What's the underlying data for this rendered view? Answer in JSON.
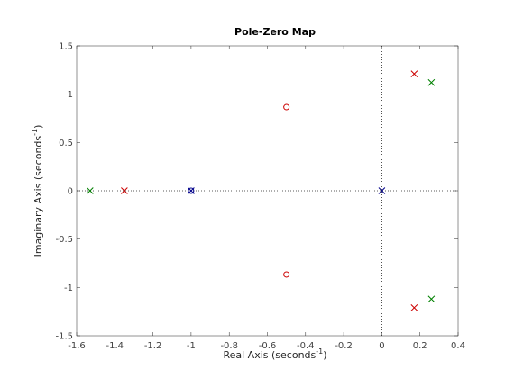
{
  "chart_data": {
    "type": "scatter",
    "title": "Pole-Zero Map",
    "xlabel": "Real Axis (seconds",
    "xlabel_sup": "-1",
    "xlabel_tail": ")",
    "ylabel": "Imaginary Axis (seconds",
    "ylabel_sup": "-1",
    "ylabel_tail": ")",
    "xlim": [
      -1.6,
      0.4
    ],
    "ylim": [
      -1.5,
      1.5
    ],
    "xticks": [
      -1.6,
      -1.4,
      -1.2,
      -1,
      -0.8,
      -0.6,
      -0.4,
      -0.2,
      0,
      0.2,
      0.4
    ],
    "xtick_labels": [
      "-1.6",
      "-1.4",
      "-1.2",
      "-1",
      "-0.8",
      "-0.6",
      "-0.4",
      "-0.2",
      "0",
      "0.2",
      "0.4"
    ],
    "yticks": [
      -1.5,
      -1,
      -0.5,
      0,
      0.5,
      1,
      1.5
    ],
    "ytick_labels": [
      "-1.5",
      "-1",
      "-0.5",
      "0",
      "0.5",
      "1",
      "1.5"
    ],
    "grid": false,
    "reference_lines": {
      "x": 0,
      "y": 0,
      "style": "dotted"
    },
    "series": [
      {
        "color": "#00008b",
        "poles": [
          {
            "x": -1.0,
            "y": 0
          },
          {
            "x": 0,
            "y": 0
          }
        ],
        "zeros": [
          {
            "x": -1.0,
            "y": 0
          }
        ]
      },
      {
        "color": "#cc0000",
        "poles": [
          {
            "x": -1.35,
            "y": 0
          },
          {
            "x": 0.17,
            "y": 1.21
          },
          {
            "x": 0.17,
            "y": -1.21
          }
        ],
        "zeros": [
          {
            "x": -0.5,
            "y": 0.866
          },
          {
            "x": -0.5,
            "y": -0.866
          }
        ]
      },
      {
        "color": "#008000",
        "poles": [
          {
            "x": -1.53,
            "y": 0
          },
          {
            "x": 0.26,
            "y": 1.12
          },
          {
            "x": 0.26,
            "y": -1.12
          }
        ],
        "zeros": []
      }
    ]
  }
}
